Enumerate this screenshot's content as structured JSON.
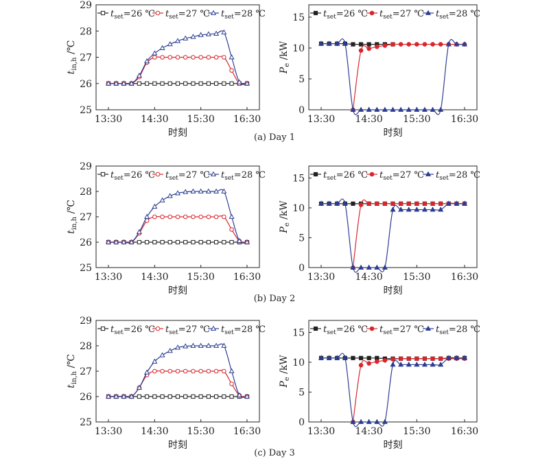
{
  "legend_labels": [
    "t_set=26 ℃",
    "t_set=27 ℃",
    "t_set=28 ℃"
  ],
  "colors": {
    "s26": "#222222",
    "s27": "#d9262c",
    "s28": "#2b3d91"
  },
  "xticks": [
    "13:30",
    "14:30",
    "15:30",
    "16:30"
  ],
  "xlabel": "时刻",
  "left_ylabel": "t_in,h /℃",
  "right_ylabel": "P_e /kW",
  "left_yticks": [
    "25",
    "26",
    "27",
    "28",
    "29"
  ],
  "right_yticks": [
    "0",
    "5",
    "10",
    "15"
  ],
  "captions": [
    "(a) Day 1",
    "(b) Day 2",
    "(c) Day 3"
  ],
  "chart_data": [
    {
      "type": "line",
      "panel": "(a) Day 1 - temperature",
      "x": [
        "13:30",
        "13:40",
        "13:50",
        "14:00",
        "14:10",
        "14:20",
        "14:30",
        "14:40",
        "14:50",
        "15:00",
        "15:10",
        "15:20",
        "15:30",
        "15:40",
        "15:50",
        "16:00",
        "16:10",
        "16:20",
        "16:30"
      ],
      "xlabel": "时刻",
      "ylabel": "t_in,h /℃",
      "ylim": [
        25,
        29
      ],
      "series": [
        {
          "name": "t_set=26 ℃",
          "marker": "open-square",
          "values": [
            26,
            26,
            26,
            26,
            26,
            26,
            26,
            26,
            26,
            26,
            26,
            26,
            26,
            26,
            26,
            26,
            26,
            26,
            26
          ]
        },
        {
          "name": "t_set=27 ℃",
          "marker": "open-circle",
          "values": [
            26,
            26,
            26,
            26,
            26.25,
            26.8,
            27,
            27,
            27,
            27,
            27,
            27,
            27,
            27,
            27,
            27,
            26.5,
            26,
            26
          ]
        },
        {
          "name": "t_set=28 ℃",
          "marker": "open-triangle",
          "values": [
            26,
            26,
            26,
            26,
            26.3,
            26.85,
            27.15,
            27.35,
            27.5,
            27.62,
            27.72,
            27.78,
            27.85,
            27.88,
            27.9,
            27.95,
            27.0,
            26.05,
            26
          ]
        }
      ]
    },
    {
      "type": "line",
      "panel": "(a) Day 1 - power",
      "x": [
        "13:30",
        "13:40",
        "13:50",
        "14:00",
        "14:10",
        "14:20",
        "14:30",
        "14:40",
        "14:50",
        "15:00",
        "15:10",
        "15:20",
        "15:30",
        "15:40",
        "15:50",
        "16:00",
        "16:10",
        "16:20",
        "16:30"
      ],
      "xlabel": "时刻",
      "ylabel": "P_e /kW",
      "ylim": [
        0,
        17
      ],
      "series": [
        {
          "name": "t_set=26 ℃",
          "marker": "filled-square",
          "x": [
            "13:30",
            "13:40",
            "13:50",
            "14:00",
            "14:10",
            "14:20",
            "14:30",
            "14:40",
            "14:50",
            "15:00"
          ],
          "values": [
            10.7,
            10.7,
            10.7,
            10.7,
            10.6,
            10.6,
            10.6,
            10.6,
            10.6,
            10.6
          ]
        },
        {
          "name": "t_set=27 ℃",
          "marker": "filled-circle",
          "x": [
            "14:10",
            "14:20",
            "14:30",
            "14:40",
            "14:50",
            "15:00",
            "15:10",
            "15:20",
            "15:30",
            "15:40",
            "15:50",
            "16:00",
            "16:10",
            "16:20",
            "16:30"
          ],
          "values": [
            0,
            9.6,
            9.9,
            10.2,
            10.4,
            10.6,
            10.6,
            10.6,
            10.6,
            10.6,
            10.6,
            10.6,
            10.6,
            10.6,
            10.6
          ]
        },
        {
          "name": "t_set=28 ℃",
          "marker": "filled-triangle",
          "x": [
            "13:30",
            "13:40",
            "13:50",
            "14:00",
            "14:10",
            "14:20",
            "14:30",
            "14:40",
            "14:50",
            "15:00",
            "15:10",
            "15:20",
            "15:30",
            "15:40",
            "15:50",
            "16:00",
            "16:10",
            "16:20",
            "16:30"
          ],
          "values": [
            10.7,
            10.7,
            10.7,
            10.7,
            0,
            0,
            0,
            0,
            0,
            0,
            0,
            0,
            0,
            0,
            0,
            0,
            10.6,
            10.6,
            10.6
          ]
        }
      ]
    },
    {
      "type": "line",
      "panel": "(b) Day 2 - temperature",
      "x": [
        "13:30",
        "13:40",
        "13:50",
        "14:00",
        "14:10",
        "14:20",
        "14:30",
        "14:40",
        "14:50",
        "15:00",
        "15:10",
        "15:20",
        "15:30",
        "15:40",
        "15:50",
        "16:00",
        "16:10",
        "16:20",
        "16:30"
      ],
      "xlabel": "时刻",
      "ylabel": "t_in,h /℃",
      "ylim": [
        25,
        29
      ],
      "series": [
        {
          "name": "t_set=26 ℃",
          "marker": "open-square",
          "values": [
            26,
            26,
            26,
            26,
            26,
            26,
            26,
            26,
            26,
            26,
            26,
            26,
            26,
            26,
            26,
            26,
            26,
            26,
            26
          ]
        },
        {
          "name": "t_set=27 ℃",
          "marker": "open-circle",
          "values": [
            26,
            26,
            26,
            26,
            26.35,
            26.85,
            27,
            27,
            27,
            27,
            27,
            27,
            27,
            27,
            27,
            27,
            26.5,
            26.05,
            26
          ]
        },
        {
          "name": "t_set=28 ℃",
          "marker": "open-triangle",
          "values": [
            26,
            26,
            26,
            26,
            26.4,
            27.0,
            27.4,
            27.65,
            27.82,
            27.93,
            27.98,
            28,
            28,
            28,
            28,
            28,
            27.0,
            26.05,
            26
          ]
        }
      ]
    },
    {
      "type": "line",
      "panel": "(b) Day 2 - power",
      "x": [
        "13:30",
        "13:40",
        "13:50",
        "14:00",
        "14:10",
        "14:20",
        "14:30",
        "14:40",
        "14:50",
        "15:00",
        "15:10",
        "15:20",
        "15:30",
        "15:40",
        "15:50",
        "16:00",
        "16:10",
        "16:20",
        "16:30"
      ],
      "xlabel": "时刻",
      "ylabel": "P_e /kW",
      "ylim": [
        0,
        17
      ],
      "series": [
        {
          "name": "t_set=26 ℃",
          "marker": "filled-square",
          "x": [
            "13:30",
            "13:40",
            "13:50",
            "14:00",
            "14:10",
            "14:20",
            "14:30",
            "14:40",
            "14:50",
            "15:00",
            "15:10",
            "15:20",
            "15:30",
            "15:40",
            "15:50",
            "16:00",
            "16:10",
            "16:20",
            "16:30"
          ],
          "values": [
            10.7,
            10.7,
            10.7,
            10.7,
            10.7,
            10.7,
            10.7,
            10.7,
            10.7,
            10.7,
            10.7,
            10.7,
            10.7,
            10.7,
            10.7,
            10.7,
            10.7,
            10.7,
            10.7
          ]
        },
        {
          "name": "t_set=27 ℃",
          "marker": "filled-circle",
          "x": [
            "14:10",
            "14:20",
            "14:30",
            "14:40",
            "14:50",
            "15:00",
            "15:10",
            "15:20",
            "15:30",
            "15:40",
            "15:50",
            "16:00",
            "16:10",
            "16:20",
            "16:30"
          ],
          "values": [
            0,
            10.5,
            10.7,
            10.7,
            10.7,
            10.7,
            10.7,
            10.7,
            10.7,
            10.7,
            10.7,
            10.7,
            10.7,
            10.7,
            10.7
          ]
        },
        {
          "name": "t_set=28 ℃",
          "marker": "filled-triangle",
          "x": [
            "13:30",
            "13:40",
            "13:50",
            "14:00",
            "14:10",
            "14:20",
            "14:30",
            "14:40",
            "14:50",
            "15:00",
            "15:10",
            "15:20",
            "15:30",
            "15:40",
            "15:50",
            "16:00",
            "16:10",
            "16:20",
            "16:30"
          ],
          "values": [
            10.7,
            10.7,
            10.7,
            10.7,
            0,
            0,
            0,
            0,
            0,
            9.7,
            9.7,
            9.7,
            9.7,
            9.7,
            9.7,
            9.7,
            10.7,
            10.7,
            10.7
          ]
        }
      ]
    },
    {
      "type": "line",
      "panel": "(c) Day 3 - temperature",
      "x": [
        "13:30",
        "13:40",
        "13:50",
        "14:00",
        "14:10",
        "14:20",
        "14:30",
        "14:40",
        "14:50",
        "15:00",
        "15:10",
        "15:20",
        "15:30",
        "15:40",
        "15:50",
        "16:00",
        "16:10",
        "16:20",
        "16:30"
      ],
      "xlabel": "时刻",
      "ylabel": "t_in,h /℃",
      "ylim": [
        25,
        29
      ],
      "series": [
        {
          "name": "t_set=26 ℃",
          "marker": "open-square",
          "values": [
            26,
            26,
            26,
            26,
            26,
            26,
            26,
            26,
            26,
            26,
            26,
            26,
            26,
            26,
            26,
            26,
            26,
            26,
            26
          ]
        },
        {
          "name": "t_set=27 ℃",
          "marker": "open-circle",
          "values": [
            26,
            26,
            26,
            26,
            26.35,
            26.85,
            27,
            27,
            27,
            27,
            27,
            27,
            27,
            27,
            27,
            27,
            26.5,
            26.05,
            26
          ]
        },
        {
          "name": "t_set=28 ℃",
          "marker": "open-triangle",
          "values": [
            26,
            26,
            26,
            26,
            26.35,
            26.95,
            27.38,
            27.63,
            27.8,
            27.93,
            27.98,
            28,
            28,
            28,
            28,
            28,
            27.0,
            26.05,
            26
          ]
        }
      ]
    },
    {
      "type": "line",
      "panel": "(c) Day 3 - power",
      "x": [
        "13:30",
        "13:40",
        "13:50",
        "14:00",
        "14:10",
        "14:20",
        "14:30",
        "14:40",
        "14:50",
        "15:00",
        "15:10",
        "15:20",
        "15:30",
        "15:40",
        "15:50",
        "16:00",
        "16:10",
        "16:20",
        "16:30"
      ],
      "xlabel": "时刻",
      "ylabel": "P_e /kW",
      "ylim": [
        0,
        17
      ],
      "series": [
        {
          "name": "t_set=26 ℃",
          "marker": "filled-square",
          "x": [
            "13:30",
            "13:40",
            "13:50",
            "14:00",
            "14:10",
            "14:20",
            "14:30",
            "14:40",
            "14:50",
            "15:00",
            "15:10",
            "15:20",
            "15:30",
            "15:40",
            "15:50",
            "16:00",
            "16:10",
            "16:20",
            "16:30"
          ],
          "values": [
            10.7,
            10.7,
            10.7,
            10.7,
            10.7,
            10.7,
            10.7,
            10.7,
            10.6,
            10.6,
            10.6,
            10.6,
            10.6,
            10.6,
            10.6,
            10.6,
            10.7,
            10.7,
            10.7
          ]
        },
        {
          "name": "t_set=27 ℃",
          "marker": "filled-circle",
          "x": [
            "14:10",
            "14:20",
            "14:30",
            "14:40",
            "14:50",
            "15:00",
            "15:10",
            "15:20",
            "15:30",
            "15:40",
            "15:50",
            "16:00",
            "16:10",
            "16:20",
            "16:30"
          ],
          "values": [
            0,
            9.5,
            9.8,
            10.1,
            10.3,
            10.5,
            10.6,
            10.6,
            10.6,
            10.6,
            10.6,
            10.6,
            10.6,
            10.6,
            10.6
          ]
        },
        {
          "name": "t_set=28 ℃",
          "marker": "filled-triangle",
          "x": [
            "13:30",
            "13:40",
            "13:50",
            "14:00",
            "14:10",
            "14:20",
            "14:30",
            "14:40",
            "14:50",
            "15:00",
            "15:10",
            "15:20",
            "15:30",
            "15:40",
            "15:50",
            "16:00",
            "16:10",
            "16:20",
            "16:30"
          ],
          "values": [
            10.7,
            10.7,
            10.7,
            10.7,
            0,
            0,
            0,
            0,
            0,
            9.6,
            9.6,
            9.6,
            9.6,
            9.6,
            9.6,
            9.6,
            10.7,
            10.7,
            10.7
          ]
        }
      ]
    }
  ]
}
